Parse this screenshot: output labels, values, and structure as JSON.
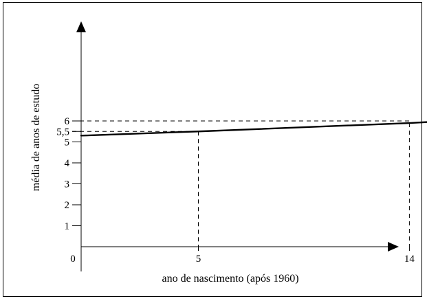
{
  "chart_data": {
    "type": "line",
    "xlabel": "ano de nascimento (após 1960)",
    "ylabel": "média de anos de estudo",
    "origin_label": "0",
    "x_ticks": [
      {
        "value": 5,
        "label": "5"
      },
      {
        "value": 14,
        "label": "14"
      }
    ],
    "y_ticks": [
      {
        "value": 1,
        "label": "1"
      },
      {
        "value": 2,
        "label": "2"
      },
      {
        "value": 3,
        "label": "3"
      },
      {
        "value": 4,
        "label": "4"
      },
      {
        "value": 5,
        "label": "5"
      },
      {
        "value": 5.5,
        "label": "5,5"
      },
      {
        "value": 6,
        "label": "6"
      }
    ],
    "series": [
      {
        "x": [
          0,
          5,
          14,
          14.8
        ],
        "y": [
          5.3,
          5.5,
          5.9,
          5.95
        ]
      }
    ],
    "reference_points": [
      {
        "x": 5,
        "y": 5.5
      },
      {
        "x": 14,
        "y": 5.9
      }
    ],
    "xlim": [
      0,
      18
    ],
    "ylim": [
      0,
      10
    ],
    "grid": false
  },
  "colors": {
    "ink": "#000000",
    "background": "#ffffff"
  }
}
